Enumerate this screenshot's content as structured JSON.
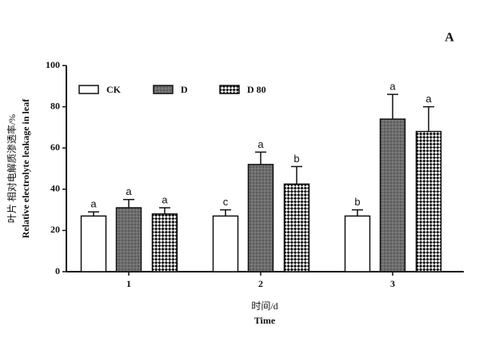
{
  "chart_data": {
    "type": "bar",
    "panel_label": "A",
    "ylabel": [
      "叶片 相对电解质渗透率/%",
      "Relative electrolyte leakage in leaf"
    ],
    "xlabel": [
      "时间/d",
      "Time"
    ],
    "categories": [
      "1",
      "2",
      "3"
    ],
    "series": [
      {
        "name": "CK",
        "color": "#ffffff",
        "pattern": "none",
        "values": [
          27,
          27,
          27
        ],
        "errors": [
          2,
          3,
          3
        ],
        "labels": [
          "a",
          "c",
          "b"
        ]
      },
      {
        "name": "D",
        "color": "#6e6e6e",
        "pattern": "dots",
        "values": [
          31,
          52,
          74
        ],
        "errors": [
          4,
          6,
          12
        ],
        "labels": [
          "a",
          "a",
          "a"
        ]
      },
      {
        "name": "D 80",
        "color": "#ffffff",
        "pattern": "checker",
        "values": [
          28,
          42.5,
          68
        ],
        "errors": [
          3,
          8.5,
          12
        ],
        "labels": [
          "a",
          "b",
          "a"
        ]
      }
    ],
    "ylim": [
      0,
      100
    ],
    "yticks": [
      0,
      20,
      40,
      60,
      80,
      100
    ],
    "grid": false,
    "legend": "top-left"
  }
}
